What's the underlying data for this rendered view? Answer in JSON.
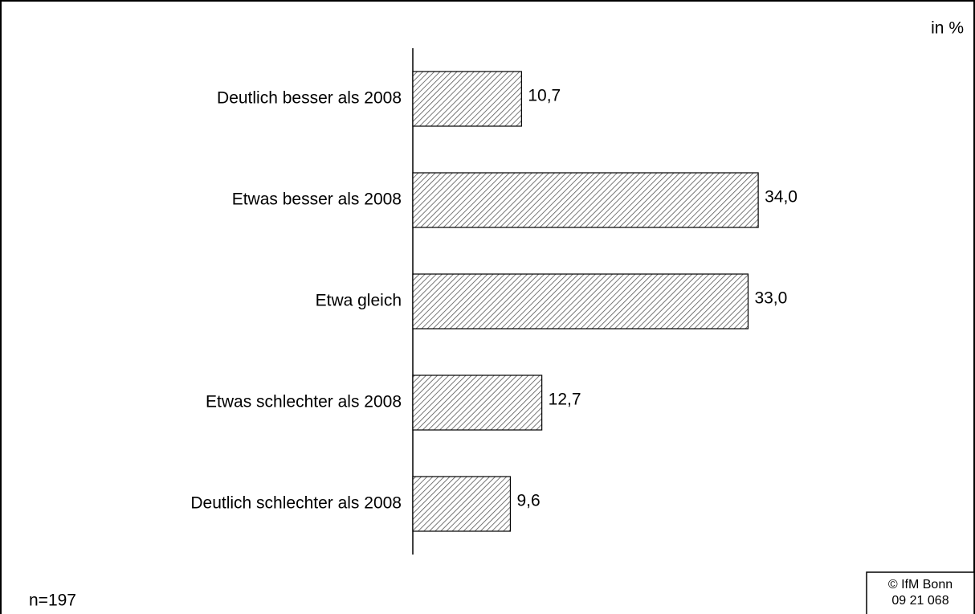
{
  "chart_data": {
    "type": "bar",
    "orientation": "horizontal",
    "unit_label": "in %",
    "categories": [
      "Deutlich besser als 2008",
      "Etwas besser als 2008",
      "Etwa gleich",
      "Etwas schlechter als 2008",
      "Deutlich schlechter als 2008"
    ],
    "values": [
      10.7,
      34.0,
      33.0,
      12.7,
      9.6
    ],
    "value_labels": [
      "10,7",
      "34,0",
      "33,0",
      "12,7",
      "9,6"
    ],
    "color": "#555555",
    "note": "n=197",
    "source": [
      "© IfM Bonn",
      "09 21 068"
    ]
  }
}
